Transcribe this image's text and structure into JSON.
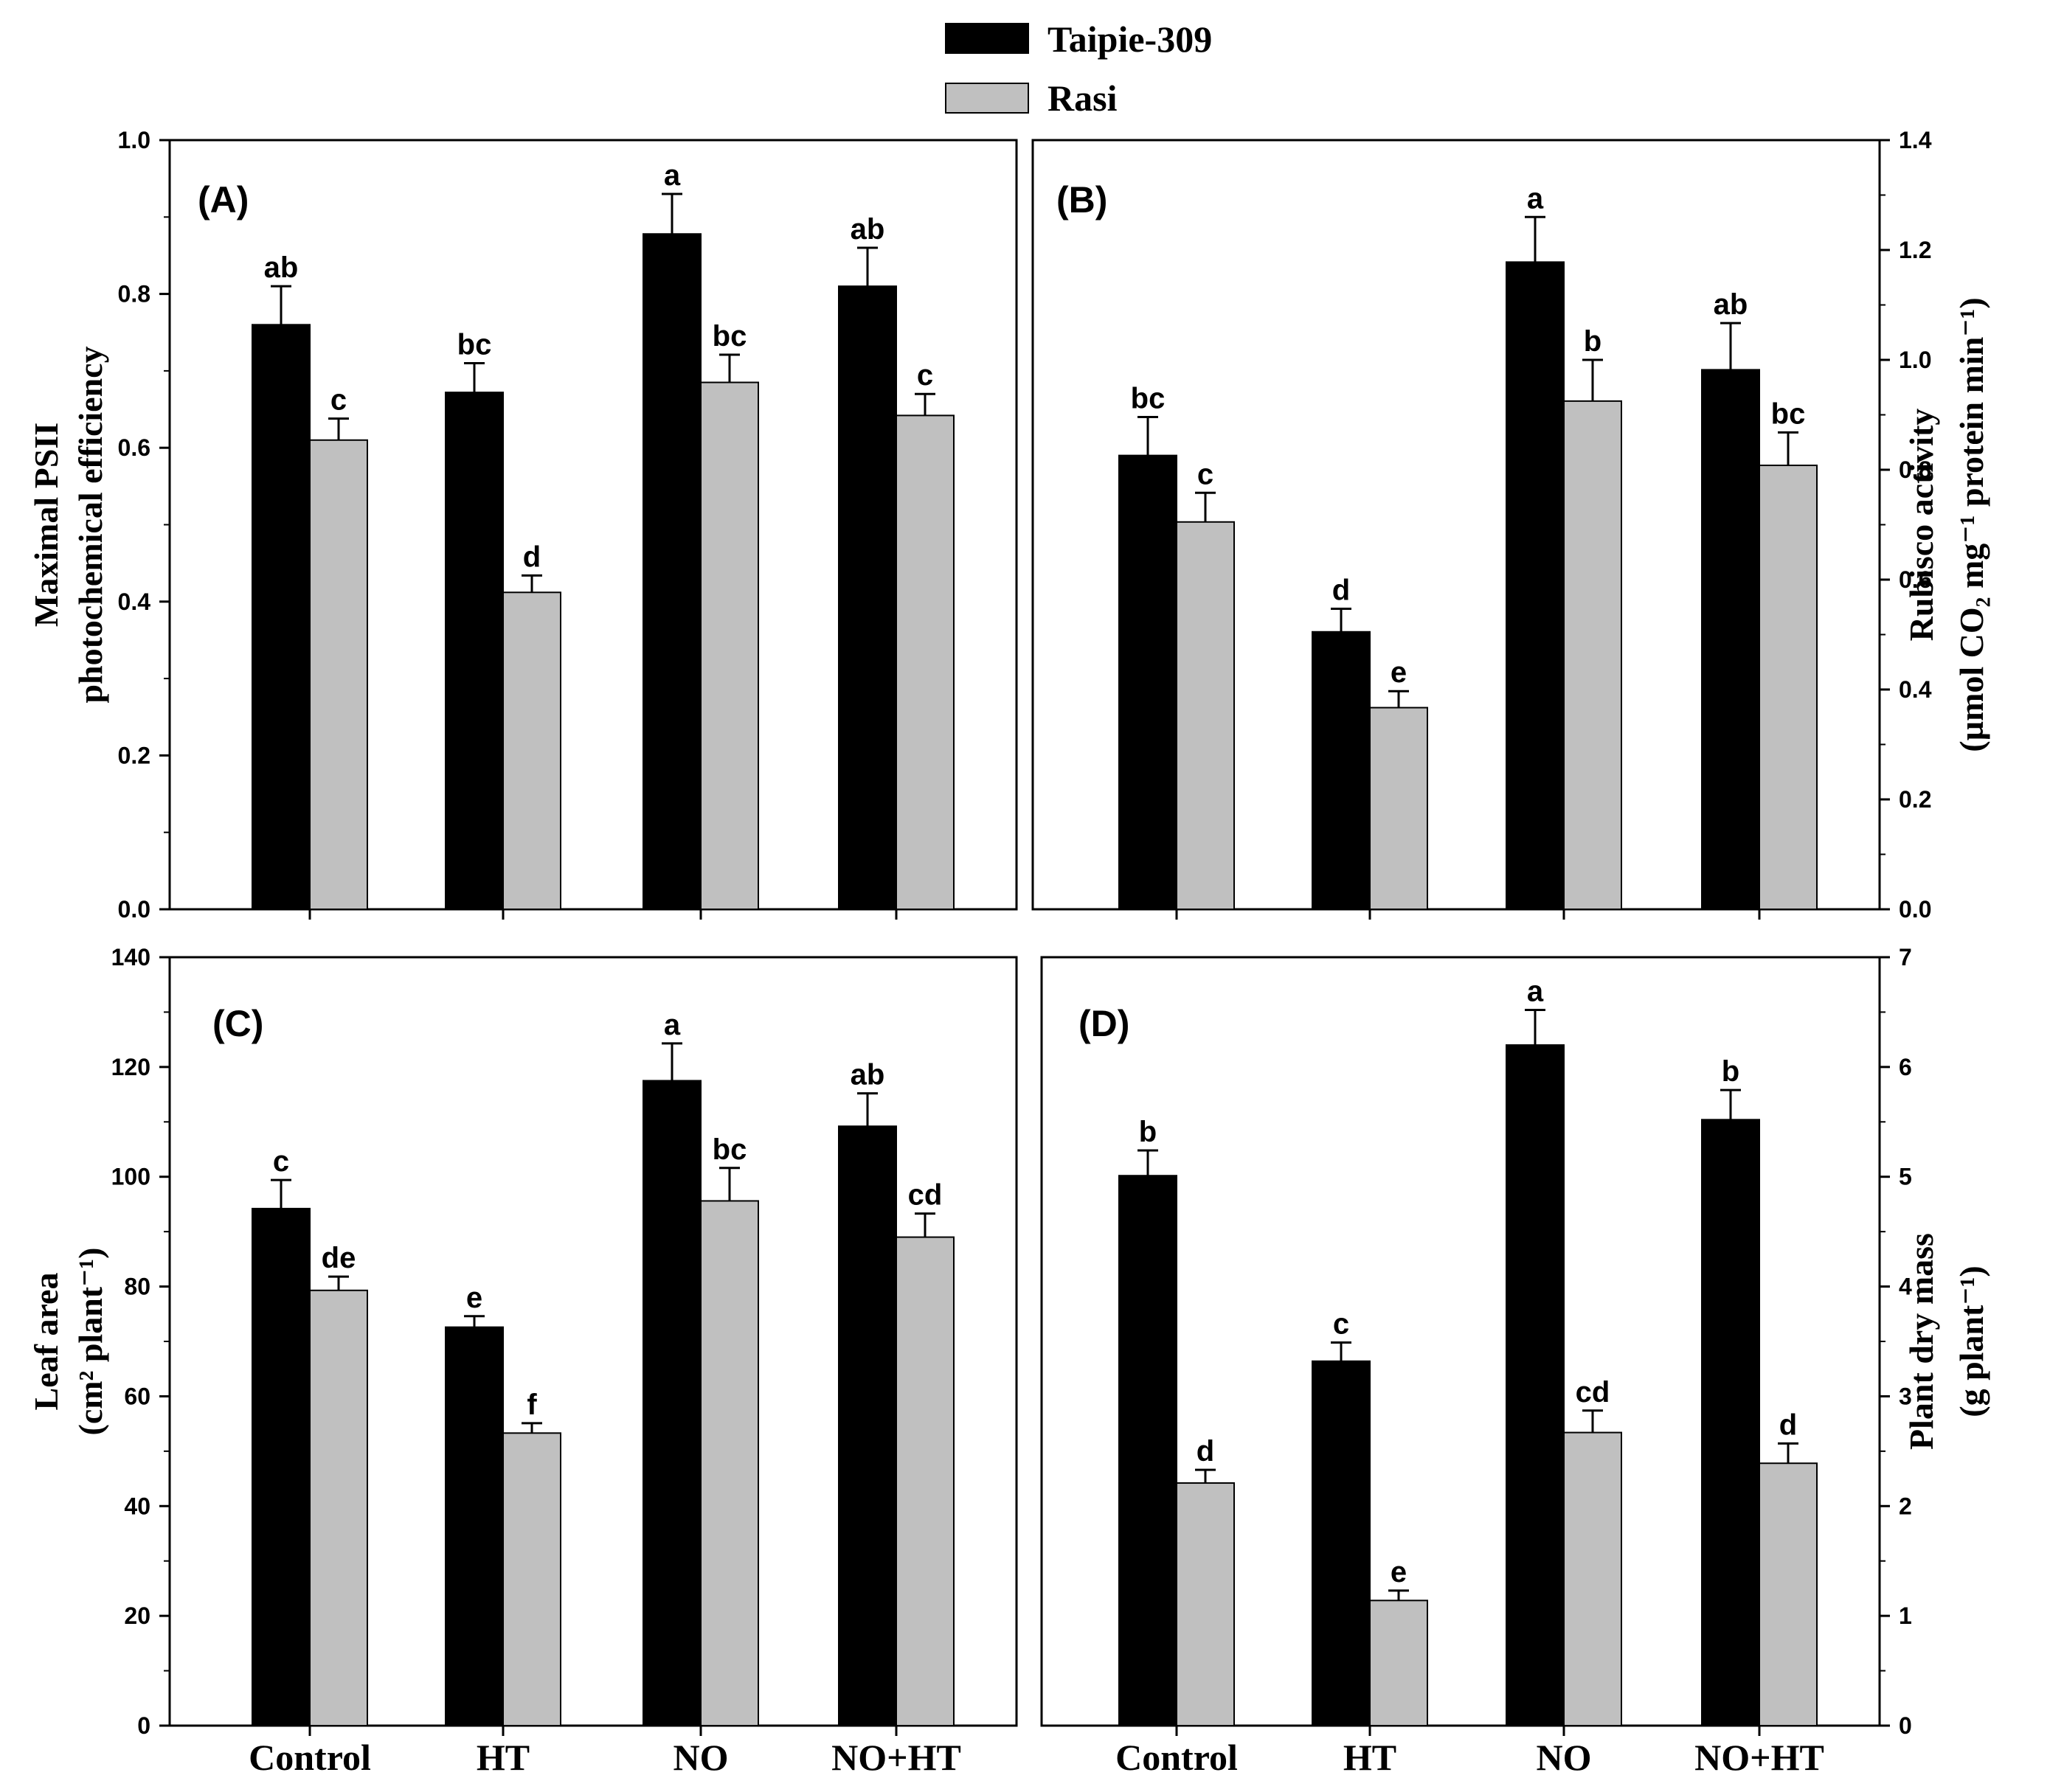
{
  "legend": {
    "series": [
      {
        "name": "Taipie-309",
        "color": "#000000"
      },
      {
        "name": "Rasi",
        "color": "#c0c0c0"
      }
    ]
  },
  "categories": [
    "Control",
    "HT",
    "NO",
    "NO+HT"
  ],
  "chart_data": [
    {
      "id": "A",
      "type": "bar",
      "panel_label": "(A)",
      "ylabel_lines": [
        "Maximal PSII",
        "photochemical efficiency"
      ],
      "y_axis_side": "left",
      "ylim": [
        0,
        1.0
      ],
      "yticks": [
        0.0,
        0.2,
        0.4,
        0.6,
        0.8,
        1.0
      ],
      "ytick_labels": [
        "0.0",
        "0.2",
        "0.4",
        "0.6",
        "0.8",
        "1.0"
      ],
      "categories": [
        "Control",
        "HT",
        "NO",
        "NO+HT"
      ],
      "series": [
        {
          "name": "Taipie-309",
          "values": [
            0.76,
            0.672,
            0.878,
            0.81
          ],
          "errors": [
            0.05,
            0.038,
            0.052,
            0.05
          ],
          "letters": [
            "ab",
            "bc",
            "a",
            "ab"
          ]
        },
        {
          "name": "Rasi",
          "values": [
            0.61,
            0.412,
            0.685,
            0.642
          ],
          "errors": [
            0.028,
            0.022,
            0.036,
            0.028
          ],
          "letters": [
            "c",
            "d",
            "bc",
            "c"
          ]
        }
      ]
    },
    {
      "id": "B",
      "type": "bar",
      "panel_label": "(B)",
      "ylabel_lines": [
        "Rubisco activity",
        "(µmol CO₂ mg⁻¹ protein min⁻¹)"
      ],
      "y_axis_side": "right",
      "ylim": [
        0,
        1.4
      ],
      "yticks": [
        0.0,
        0.2,
        0.4,
        0.6,
        0.8,
        1.0,
        1.2,
        1.4
      ],
      "ytick_labels": [
        "0.0",
        "0.2",
        "0.4",
        "0.6",
        "0.8",
        "1.0",
        "1.2",
        "1.4"
      ],
      "categories": [
        "Control",
        "HT",
        "NO",
        "NO+HT"
      ],
      "series": [
        {
          "name": "Taipie-309",
          "values": [
            0.826,
            0.505,
            1.178,
            0.982
          ],
          "errors": [
            0.07,
            0.042,
            0.082,
            0.085
          ],
          "letters": [
            "bc",
            "d",
            "a",
            "ab"
          ]
        },
        {
          "name": "Rasi",
          "values": [
            0.705,
            0.367,
            0.925,
            0.808
          ],
          "errors": [
            0.053,
            0.03,
            0.075,
            0.06
          ],
          "letters": [
            "c",
            "e",
            "b",
            "bc"
          ]
        }
      ]
    },
    {
      "id": "C",
      "type": "bar",
      "panel_label": "(C)",
      "ylabel_lines": [
        "Leaf area",
        "(cm² plant⁻¹)"
      ],
      "y_axis_side": "left",
      "ylim": [
        0,
        140
      ],
      "yticks": [
        0,
        20,
        40,
        60,
        80,
        100,
        120,
        140
      ],
      "ytick_labels": [
        "0",
        "20",
        "40",
        "60",
        "80",
        "100",
        "120",
        "140"
      ],
      "categories": [
        "Control",
        "HT",
        "NO",
        "NO+HT"
      ],
      "series": [
        {
          "name": "Taipie-309",
          "values": [
            94.2,
            72.6,
            117.5,
            109.2
          ],
          "errors": [
            5.2,
            2.0,
            6.8,
            6.0
          ],
          "letters": [
            "c",
            "e",
            "a",
            "ab"
          ]
        },
        {
          "name": "Rasi",
          "values": [
            79.3,
            53.3,
            95.6,
            89.0
          ],
          "errors": [
            2.5,
            1.8,
            6.0,
            4.3
          ],
          "letters": [
            "de",
            "f",
            "bc",
            "cd"
          ]
        }
      ]
    },
    {
      "id": "D",
      "type": "bar",
      "panel_label": "(D)",
      "ylabel_lines": [
        "Plant dry mass",
        "(g plant⁻¹)"
      ],
      "y_axis_side": "right",
      "ylim": [
        0,
        7
      ],
      "yticks": [
        0,
        1,
        2,
        3,
        4,
        5,
        6,
        7
      ],
      "ytick_labels": [
        "0",
        "1",
        "2",
        "3",
        "4",
        "5",
        "6",
        "7"
      ],
      "categories": [
        "Control",
        "HT",
        "NO",
        "NO+HT"
      ],
      "series": [
        {
          "name": "Taipie-309",
          "values": [
            5.01,
            3.32,
            6.2,
            5.52
          ],
          "errors": [
            0.23,
            0.17,
            0.32,
            0.27
          ],
          "letters": [
            "b",
            "c",
            "a",
            "b"
          ]
        },
        {
          "name": "Rasi",
          "values": [
            2.21,
            1.14,
            2.67,
            2.39
          ],
          "errors": [
            0.12,
            0.09,
            0.2,
            0.18
          ],
          "letters": [
            "d",
            "e",
            "cd",
            "d"
          ]
        }
      ]
    }
  ]
}
